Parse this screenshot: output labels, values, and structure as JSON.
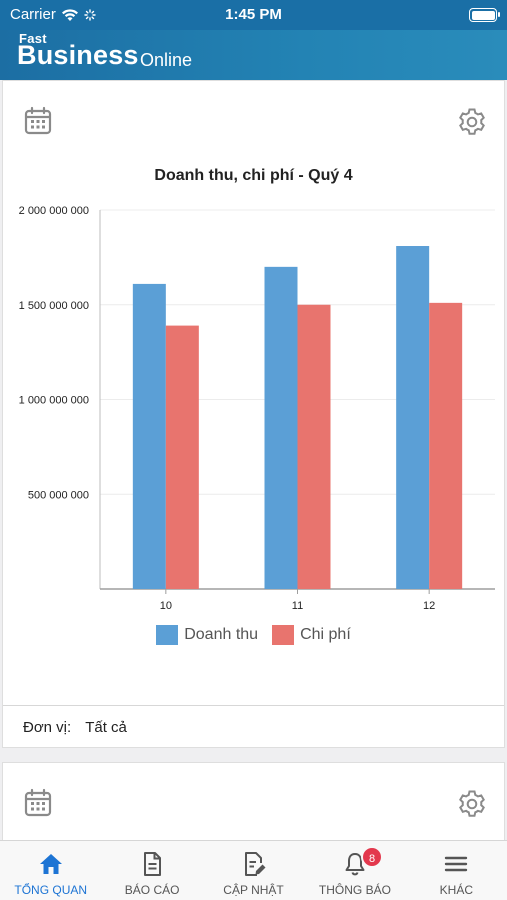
{
  "status": {
    "carrier": "Carrier",
    "time": "1:45 PM"
  },
  "header": {
    "logo_top": "Fast",
    "logo_main": "Business",
    "logo_sub": "Online"
  },
  "card1": {
    "title": "Doanh thu, chi phí - Quý 4",
    "unit_label": "Đơn vị:",
    "unit_value": "Tất cả",
    "calendar_icon": "calendar-icon",
    "settings_icon": "gear-icon"
  },
  "card2": {
    "calendar_icon": "calendar-icon",
    "settings_icon": "gear-icon"
  },
  "chart_data": {
    "type": "bar",
    "categories": [
      "10",
      "11",
      "12"
    ],
    "series": [
      {
        "name": "Doanh thu",
        "color": "#5b9fd6",
        "values": [
          1610000000,
          1700000000,
          1810000000
        ]
      },
      {
        "name": "Chi phí",
        "color": "#e8746e",
        "values": [
          1390000000,
          1500000000,
          1510000000
        ]
      }
    ],
    "y_ticks": [
      "500 000 000",
      "1 000 000 000",
      "1 500 000 000",
      "2 000 000 000"
    ],
    "ylim": [
      0,
      2000000000
    ],
    "grid": true,
    "legend": "bottom",
    "title": "Doanh thu, chi phí - Quý 4"
  },
  "tabs": [
    {
      "label": "TỔNG QUAN",
      "icon": "home-icon",
      "active": true
    },
    {
      "label": "BÁO CÁO",
      "icon": "report-icon",
      "active": false
    },
    {
      "label": "CẬP NHẬT",
      "icon": "edit-icon",
      "active": false
    },
    {
      "label": "THÔNG BÁO",
      "icon": "bell-icon",
      "active": false,
      "badge": "8"
    },
    {
      "label": "KHÁC",
      "icon": "menu-icon",
      "active": false
    }
  ]
}
